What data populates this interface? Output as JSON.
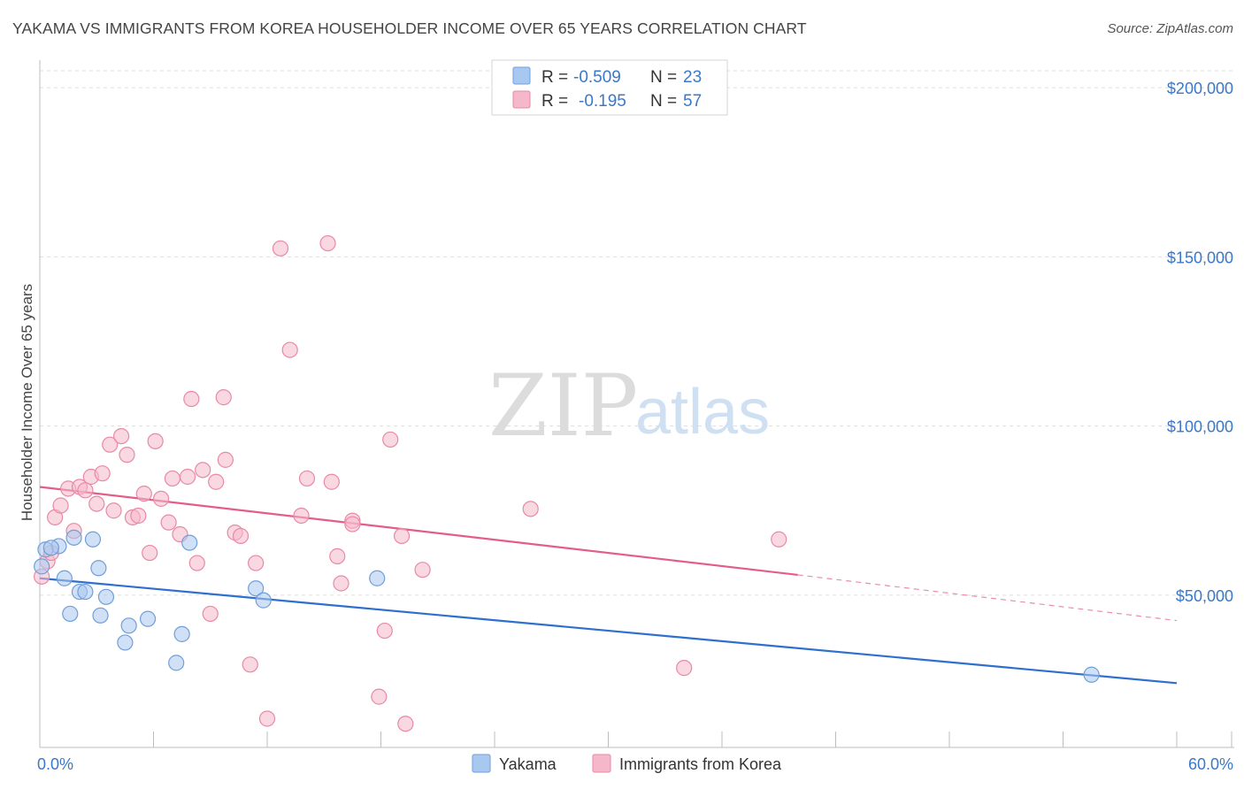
{
  "title": "YAKAMA VS IMMIGRANTS FROM KOREA HOUSEHOLDER INCOME OVER 65 YEARS CORRELATION CHART",
  "source": "Source: ZipAtlas.com",
  "watermark": {
    "zip": "ZIP",
    "atlas": "atlas"
  },
  "legend_top": {
    "rows": [
      {
        "r_label": "R =",
        "r_value": "-0.509",
        "n_label": "N =",
        "n_value": "23",
        "color": "#a9c8f0"
      },
      {
        "r_label": "R =",
        "r_value": "-0.195",
        "n_label": "N =",
        "n_value": "57",
        "color": "#f5b8ca"
      }
    ]
  },
  "chart_data": {
    "type": "scatter",
    "title": "YAKAMA VS IMMIGRANTS FROM KOREA HOUSEHOLDER INCOME OVER 65 YEARS CORRELATION CHART",
    "xlabel": "",
    "ylabel": "Householder Income Over 65 years",
    "xlim": [
      0,
      60
    ],
    "ylim": [
      5000,
      205000
    ],
    "x_tick_labels": [
      "0.0%",
      "60.0%"
    ],
    "y_ticks": [
      50000,
      100000,
      150000,
      200000
    ],
    "y_tick_labels": [
      "$50,000",
      "$100,000",
      "$150,000",
      "$200,000"
    ],
    "grid": true,
    "legend_placement": "bottom-center",
    "series": [
      {
        "name": "Yakama",
        "color": "#a9c8f0",
        "edge": "#6f9fd8",
        "line_color": "#2f6fce",
        "trend": {
          "x0": 0,
          "y0": 55000,
          "x1": 60,
          "y1": 24000
        },
        "points": [
          [
            0.1,
            58500
          ],
          [
            1.0,
            64500
          ],
          [
            1.3,
            55000
          ],
          [
            1.6,
            44500
          ],
          [
            1.8,
            67000
          ],
          [
            2.1,
            51000
          ],
          [
            2.4,
            51000
          ],
          [
            2.8,
            66500
          ],
          [
            3.1,
            58000
          ],
          [
            3.2,
            44000
          ],
          [
            3.5,
            49500
          ],
          [
            4.5,
            36000
          ],
          [
            4.7,
            41000
          ],
          [
            5.7,
            43000
          ],
          [
            7.2,
            30000
          ],
          [
            7.5,
            38500
          ],
          [
            7.9,
            65500
          ],
          [
            11.4,
            52000
          ],
          [
            11.8,
            48500
          ],
          [
            17.8,
            55000
          ],
          [
            0.3,
            63500
          ],
          [
            0.6,
            64000
          ],
          [
            55.5,
            26500
          ]
        ]
      },
      {
        "name": "Immigrants from Korea",
        "color": "#f5b8ca",
        "edge": "#e889a6",
        "line_color": "#e35d88",
        "trend": {
          "x0": 0,
          "y0": 82000,
          "x1": 40,
          "y1": 56000,
          "dash_x1": 60,
          "dash_y1": 42500
        },
        "points": [
          [
            0.1,
            55500
          ],
          [
            0.4,
            60000
          ],
          [
            0.6,
            62500
          ],
          [
            0.8,
            73000
          ],
          [
            1.1,
            76500
          ],
          [
            1.5,
            81500
          ],
          [
            1.8,
            69000
          ],
          [
            2.1,
            82000
          ],
          [
            2.4,
            81000
          ],
          [
            2.7,
            85000
          ],
          [
            3.0,
            77000
          ],
          [
            3.3,
            86000
          ],
          [
            3.7,
            94500
          ],
          [
            3.9,
            75000
          ],
          [
            4.3,
            97000
          ],
          [
            4.6,
            91500
          ],
          [
            4.9,
            73000
          ],
          [
            5.2,
            73500
          ],
          [
            5.5,
            80000
          ],
          [
            5.8,
            62500
          ],
          [
            6.1,
            95500
          ],
          [
            6.4,
            78500
          ],
          [
            6.8,
            71500
          ],
          [
            7.0,
            84500
          ],
          [
            7.4,
            68000
          ],
          [
            7.8,
            85000
          ],
          [
            8.0,
            108000
          ],
          [
            8.3,
            59500
          ],
          [
            8.6,
            87000
          ],
          [
            9.0,
            44500
          ],
          [
            9.3,
            83500
          ],
          [
            9.7,
            108500
          ],
          [
            9.8,
            90000
          ],
          [
            10.3,
            68500
          ],
          [
            10.6,
            67500
          ],
          [
            11.1,
            29500
          ],
          [
            11.4,
            59500
          ],
          [
            12.0,
            13500
          ],
          [
            12.7,
            152500
          ],
          [
            13.2,
            122500
          ],
          [
            13.8,
            73500
          ],
          [
            14.1,
            84500
          ],
          [
            15.2,
            154000
          ],
          [
            15.4,
            83500
          ],
          [
            15.7,
            61500
          ],
          [
            15.9,
            53500
          ],
          [
            16.5,
            72000
          ],
          [
            16.5,
            71000
          ],
          [
            17.9,
            20000
          ],
          [
            18.2,
            39500
          ],
          [
            18.5,
            96000
          ],
          [
            19.1,
            67500
          ],
          [
            19.3,
            12000
          ],
          [
            20.2,
            57500
          ],
          [
            25.9,
            75500
          ],
          [
            34.0,
            28500
          ],
          [
            39.0,
            66500
          ]
        ]
      }
    ]
  }
}
